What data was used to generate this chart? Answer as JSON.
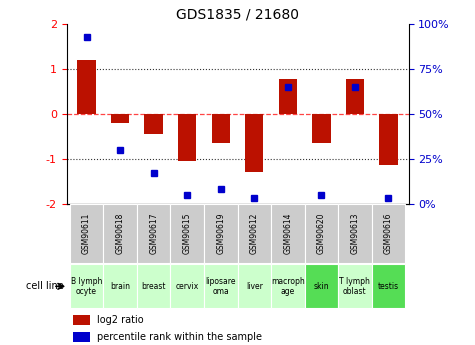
{
  "title": "GDS1835 / 21680",
  "gsm_labels": [
    "GSM90611",
    "GSM90618",
    "GSM90617",
    "GSM90615",
    "GSM90619",
    "GSM90612",
    "GSM90614",
    "GSM90620",
    "GSM90613",
    "GSM90616"
  ],
  "cell_line_labels": [
    "B lymph\nocyte",
    "brain",
    "breast",
    "cervix",
    "liposare\noma",
    "liver",
    "macroph\nage",
    "skin",
    "T lymph\noblast",
    "testis"
  ],
  "cell_line_colors": [
    "#ccffcc",
    "#ccffcc",
    "#ccffcc",
    "#ccffcc",
    "#ccffcc",
    "#ccffcc",
    "#ccffcc",
    "#55dd55",
    "#ccffcc",
    "#55dd55"
  ],
  "log2_ratio": [
    1.2,
    -0.2,
    -0.45,
    -1.05,
    -0.65,
    -1.3,
    0.78,
    -0.65,
    0.78,
    -1.15
  ],
  "percentile_rank": [
    93,
    30,
    17,
    5,
    8,
    3,
    65,
    5,
    65,
    3
  ],
  "ylim_left": [
    -2,
    2
  ],
  "left_yticks": [
    -2,
    -1,
    0,
    1,
    2
  ],
  "right_yticklabels": [
    "0%",
    "25%",
    "50%",
    "75%",
    "100%"
  ],
  "right_ytick_positions": [
    -2,
    -1,
    0,
    1,
    2
  ],
  "bar_color": "#bb1100",
  "dot_color": "#0000cc",
  "zero_line_color": "#ff4444",
  "dot_line_color": "#333333",
  "bg_color": "#ffffff",
  "gsm_bg_color": "#cccccc",
  "legend_red_label": "log2 ratio",
  "legend_blue_label": "percentile rank within the sample",
  "cell_line_header": "cell line"
}
